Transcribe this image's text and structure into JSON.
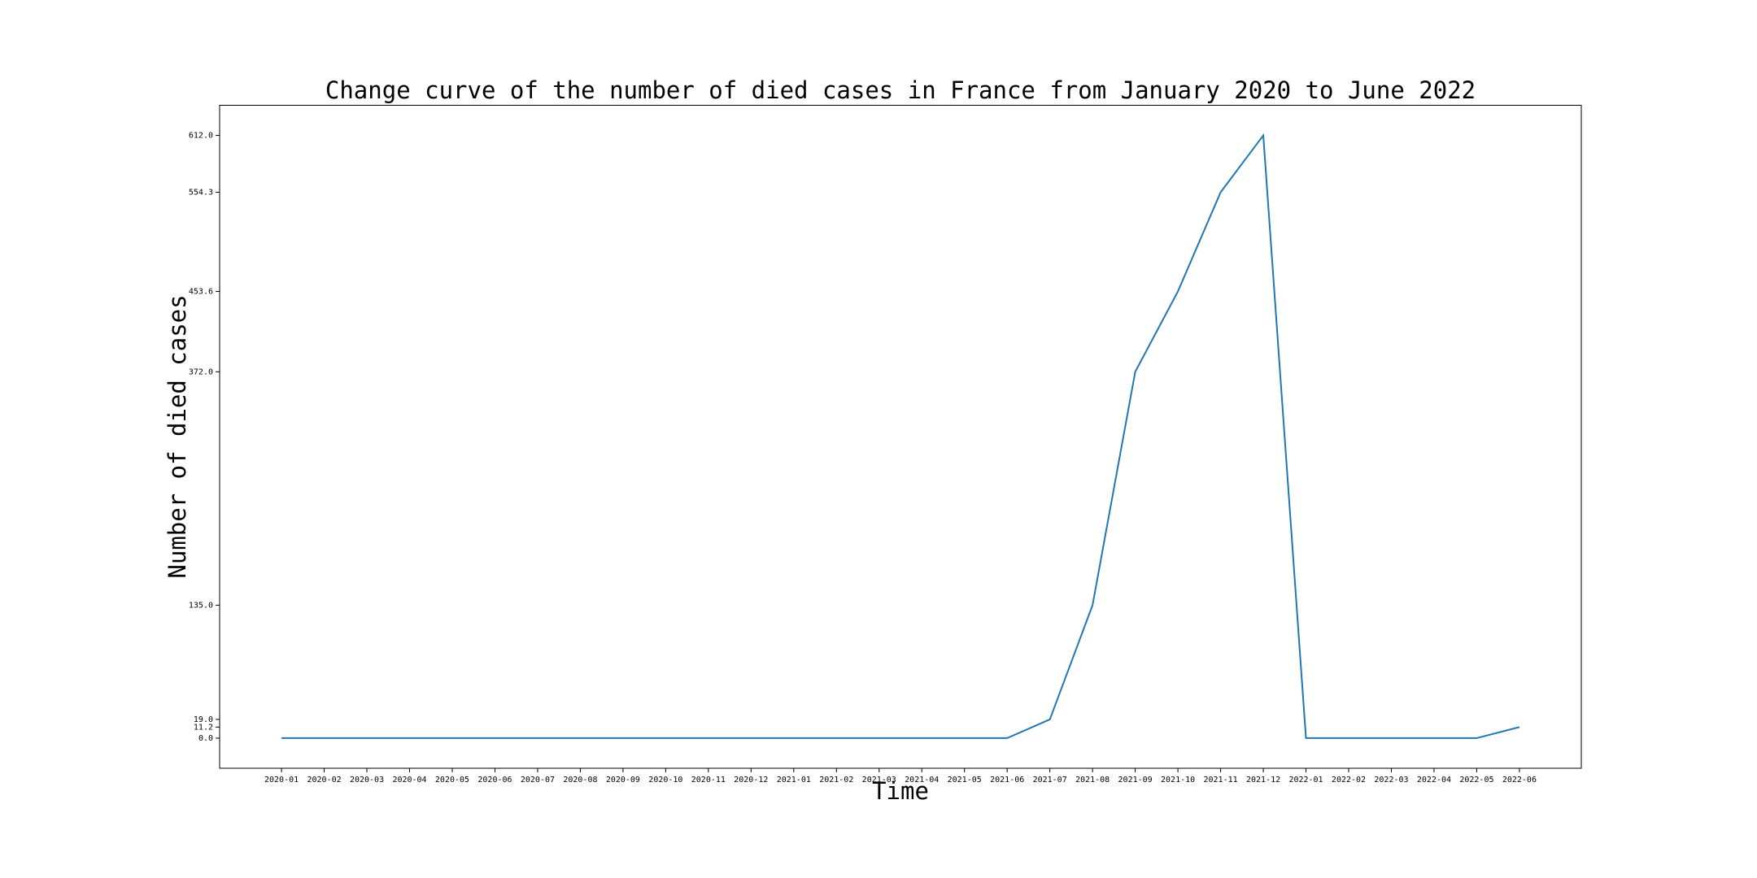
{
  "chart_data": {
    "type": "line",
    "title": "Change curve of the number of died cases in France from January 2020 to June 2022",
    "x_label": "Time",
    "y_label": "Number of died cases",
    "categories": [
      "2020-01",
      "2020-02",
      "2020-03",
      "2020-04",
      "2020-05",
      "2020-06",
      "2020-07",
      "2020-08",
      "2020-09",
      "2020-10",
      "2020-11",
      "2020-12",
      "2021-01",
      "2021-02",
      "2021-03",
      "2021-04",
      "2021-05",
      "2021-06",
      "2021-07",
      "2021-08",
      "2021-09",
      "2021-10",
      "2021-11",
      "2021-12",
      "2022-01",
      "2022-02",
      "2022-03",
      "2022-04",
      "2022-05",
      "2022-06"
    ],
    "values": [
      0,
      0,
      0,
      0,
      0,
      0,
      0,
      0,
      0,
      0,
      0,
      0,
      0,
      0,
      0,
      0,
      0,
      0,
      19.0,
      135.0,
      372.0,
      453.6,
      554.3,
      612.0,
      0,
      0,
      0,
      0,
      0,
      11.2
    ],
    "color": "#1f77b4",
    "ylim": [
      -30.6,
      642.6
    ],
    "yticks": [
      {
        "value": 0,
        "label": "0.0"
      },
      11.2,
      {
        "value": 19,
        "label": "19.0"
      },
      {
        "value": 135,
        "label": "135.0"
      },
      {
        "value": 372,
        "label": "372.0"
      },
      453.6,
      554.3,
      {
        "value": 612,
        "label": "612.0"
      }
    ],
    "grid": false
  }
}
